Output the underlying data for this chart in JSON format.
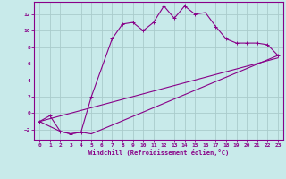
{
  "xlabel": "Windchill (Refroidissement éolien,°C)",
  "background_color": "#c8eaea",
  "grid_color": "#aacccc",
  "line_color": "#880088",
  "xlim": [
    -0.5,
    23.5
  ],
  "ylim": [
    -3.2,
    13.5
  ],
  "xticks": [
    0,
    1,
    2,
    3,
    4,
    5,
    6,
    7,
    8,
    9,
    10,
    11,
    12,
    13,
    14,
    15,
    16,
    17,
    18,
    19,
    20,
    21,
    22,
    23
  ],
  "yticks": [
    -2,
    0,
    2,
    4,
    6,
    8,
    10,
    12
  ],
  "line1_x": [
    0,
    1,
    2,
    3,
    4,
    5,
    7,
    8,
    9,
    10,
    11,
    12,
    13,
    14,
    15,
    16,
    17,
    18,
    19,
    20,
    21,
    22,
    23
  ],
  "line1_y": [
    -1.0,
    -0.3,
    -2.2,
    -2.5,
    -2.3,
    2.0,
    9.0,
    10.8,
    11.0,
    10.0,
    11.0,
    13.0,
    11.5,
    13.0,
    12.0,
    12.2,
    10.5,
    9.0,
    8.5,
    8.5,
    8.5,
    8.3,
    7.0
  ],
  "line2_x": [
    0,
    2,
    3,
    4,
    5,
    23
  ],
  "line2_y": [
    -1.0,
    -2.2,
    -2.5,
    -2.3,
    -2.5,
    7.0
  ],
  "line3_x": [
    0,
    23
  ],
  "line3_y": [
    -1.0,
    6.7
  ],
  "marker": "+"
}
